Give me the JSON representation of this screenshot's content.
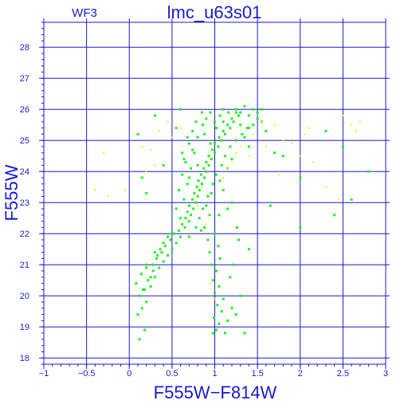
{
  "header": {
    "chip_label": "WF3"
  },
  "chart_data": {
    "type": "scatter",
    "title": "lmc_u63s01",
    "xlabel": "F555W−F814W",
    "ylabel": "F555W",
    "xlim": [
      -1,
      3
    ],
    "ylim": [
      28.8,
      17.8
    ],
    "y_inverted": true,
    "grid": true,
    "x_ticks": [
      -1,
      -0.5,
      0,
      0.5,
      1,
      1.5,
      2,
      2.5,
      3
    ],
    "x_tick_labels": [
      "−1",
      "−0.5",
      "0",
      "0.5",
      "1",
      "1.5",
      "2",
      "2.5",
      "3"
    ],
    "y_ticks": [
      18,
      19,
      20,
      21,
      22,
      23,
      24,
      25,
      26,
      27,
      28
    ],
    "y_tick_labels": [
      "18",
      "19",
      "20",
      "21",
      "22",
      "23",
      "24",
      "25",
      "26",
      "27",
      "28"
    ],
    "colors": {
      "frame": "#1a1acd",
      "grid": "#1a1acd",
      "primary_points": "#22ee22",
      "secondary_points": "#eeee00"
    },
    "series": [
      {
        "color": "#22ee22",
        "points": [
          [
            0.12,
            18.6
          ],
          [
            0.18,
            18.9
          ],
          [
            0.1,
            19.4
          ],
          [
            0.15,
            19.6
          ],
          [
            0.2,
            19.8
          ],
          [
            0.12,
            20.0
          ],
          [
            0.18,
            20.2
          ],
          [
            0.25,
            20.3
          ],
          [
            0.08,
            20.4
          ],
          [
            0.22,
            20.5
          ],
          [
            0.3,
            20.6
          ],
          [
            0.14,
            20.7
          ],
          [
            0.28,
            20.8
          ],
          [
            0.35,
            20.9
          ],
          [
            0.2,
            21.0
          ],
          [
            0.4,
            21.1
          ],
          [
            0.32,
            21.2
          ],
          [
            0.45,
            21.3
          ],
          [
            0.38,
            21.4
          ],
          [
            0.5,
            21.5
          ],
          [
            0.42,
            21.6
          ],
          [
            0.55,
            21.7
          ],
          [
            0.48,
            21.8
          ],
          [
            0.6,
            21.9
          ],
          [
            0.52,
            22.0
          ],
          [
            0.58,
            22.1
          ],
          [
            0.65,
            22.2
          ],
          [
            0.62,
            22.3
          ],
          [
            0.7,
            22.4
          ],
          [
            0.66,
            22.5
          ],
          [
            0.72,
            22.6
          ],
          [
            0.68,
            22.7
          ],
          [
            0.75,
            22.8
          ],
          [
            0.7,
            22.9
          ],
          [
            0.78,
            23.0
          ],
          [
            0.74,
            23.1
          ],
          [
            0.8,
            23.2
          ],
          [
            0.76,
            23.3
          ],
          [
            0.82,
            23.4
          ],
          [
            0.79,
            23.5
          ],
          [
            0.85,
            23.6
          ],
          [
            0.81,
            23.7
          ],
          [
            0.88,
            23.8
          ],
          [
            0.84,
            23.9
          ],
          [
            0.9,
            24.0
          ],
          [
            0.87,
            24.1
          ],
          [
            0.93,
            24.2
          ],
          [
            0.9,
            24.3
          ],
          [
            0.96,
            24.4
          ],
          [
            0.93,
            24.5
          ],
          [
            1.0,
            24.6
          ],
          [
            0.97,
            24.7
          ],
          [
            1.04,
            24.8
          ],
          [
            1.0,
            24.9
          ],
          [
            1.08,
            25.0
          ],
          [
            1.05,
            25.1
          ],
          [
            1.12,
            25.2
          ],
          [
            1.1,
            25.3
          ],
          [
            1.18,
            25.4
          ],
          [
            1.15,
            25.5
          ],
          [
            1.22,
            25.6
          ],
          [
            1.2,
            25.7
          ],
          [
            1.28,
            25.8
          ],
          [
            1.3,
            25.9
          ],
          [
            1.4,
            25.8
          ],
          [
            1.5,
            25.9
          ],
          [
            1.55,
            26.0
          ],
          [
            1.45,
            26.0
          ],
          [
            1.35,
            26.1
          ],
          [
            1.1,
            26.0
          ],
          [
            0.6,
            22.5
          ],
          [
            0.55,
            22.8
          ],
          [
            0.64,
            23.1
          ],
          [
            0.58,
            23.4
          ],
          [
            0.68,
            23.6
          ],
          [
            0.62,
            23.9
          ],
          [
            0.72,
            24.1
          ],
          [
            0.66,
            24.3
          ],
          [
            0.76,
            24.6
          ],
          [
            0.7,
            24.9
          ],
          [
            0.8,
            25.1
          ],
          [
            0.74,
            25.3
          ],
          [
            0.86,
            25.5
          ],
          [
            0.9,
            25.7
          ],
          [
            0.95,
            25.9
          ],
          [
            1.0,
            25.6
          ],
          [
            1.06,
            25.8
          ],
          [
            1.16,
            25.9
          ],
          [
            1.25,
            26.0
          ],
          [
            1.02,
            25.4
          ],
          [
            0.82,
            22.5
          ],
          [
            0.86,
            22.8
          ],
          [
            0.92,
            23.2
          ],
          [
            0.98,
            23.6
          ],
          [
            1.02,
            23.9
          ],
          [
            1.08,
            24.2
          ],
          [
            1.12,
            24.5
          ],
          [
            1.18,
            24.8
          ],
          [
            1.25,
            25.0
          ],
          [
            1.32,
            25.2
          ],
          [
            1.38,
            25.4
          ],
          [
            1.45,
            25.5
          ],
          [
            1.2,
            24.4
          ],
          [
            1.15,
            24.1
          ],
          [
            1.06,
            23.7
          ],
          [
            0.96,
            23.3
          ],
          [
            0.9,
            22.9
          ],
          [
            0.78,
            22.2
          ],
          [
            0.84,
            22.1
          ],
          [
            0.7,
            21.9
          ],
          [
            0.98,
            18.8
          ],
          [
            1.02,
            18.9
          ],
          [
            1.05,
            19.1
          ],
          [
            0.99,
            19.3
          ],
          [
            1.08,
            19.5
          ],
          [
            1.03,
            19.7
          ],
          [
            1.1,
            19.9
          ],
          [
            1.0,
            20.1
          ],
          [
            1.05,
            20.3
          ],
          [
            0.98,
            20.5
          ],
          [
            1.02,
            20.8
          ],
          [
            0.96,
            21.0
          ],
          [
            1.06,
            21.2
          ],
          [
            0.94,
            21.4
          ],
          [
            1.04,
            21.6
          ],
          [
            0.92,
            21.8
          ],
          [
            1.0,
            22.0
          ],
          [
            1.12,
            18.8
          ],
          [
            1.15,
            19.2
          ],
          [
            1.2,
            19.6
          ],
          [
            1.25,
            19.4
          ],
          [
            1.3,
            20.0
          ],
          [
            1.35,
            18.8
          ],
          [
            1.4,
            21.5
          ],
          [
            1.18,
            20.6
          ],
          [
            1.22,
            21.0
          ],
          [
            1.28,
            21.8
          ],
          [
            0.88,
            22.2
          ],
          [
            0.94,
            22.6
          ],
          [
            1.26,
            22.2
          ],
          [
            0.95,
            24.9
          ],
          [
            0.88,
            25.2
          ],
          [
            1.1,
            25.6
          ],
          [
            1.3,
            25.5
          ],
          [
            1.5,
            25.7
          ],
          [
            1.4,
            25.4
          ],
          [
            0.7,
            23.8
          ],
          [
            0.64,
            24.4
          ],
          [
            0.74,
            24.7
          ],
          [
            0.8,
            24.2
          ],
          [
            1.1,
            23.4
          ],
          [
            1.15,
            22.8
          ],
          [
            1.2,
            23.0
          ],
          [
            1.05,
            22.6
          ],
          [
            0.5,
            22.0
          ],
          [
            0.45,
            21.9
          ],
          [
            0.4,
            21.7
          ],
          [
            0.36,
            21.5
          ],
          [
            0.33,
            21.3
          ],
          [
            0.28,
            21.0
          ],
          [
            0.25,
            20.6
          ],
          [
            0.2,
            20.9
          ],
          [
            0.16,
            20.2
          ],
          [
            0.3,
            21.4
          ],
          [
            1.65,
            22.9
          ],
          [
            2.0,
            22.2
          ],
          [
            2.4,
            22.6
          ],
          [
            2.6,
            23.1
          ],
          [
            2.8,
            24.0
          ],
          [
            2.5,
            24.8
          ],
          [
            2.3,
            25.3
          ],
          [
            2.0,
            23.8
          ],
          [
            1.8,
            24.5
          ],
          [
            0.15,
            23.8
          ],
          [
            0.4,
            24.2
          ],
          [
            0.1,
            25.2
          ],
          [
            0.3,
            25.8
          ],
          [
            0.2,
            23.3
          ],
          [
            0.6,
            26.0
          ],
          [
            0.55,
            25.4
          ],
          [
            1.6,
            25.3
          ],
          [
            1.7,
            24.6
          ],
          [
            1.4,
            24.8
          ],
          [
            1.55,
            25.6
          ],
          [
            1.25,
            25.9
          ],
          [
            1.35,
            25.1
          ],
          [
            0.85,
            25.9
          ],
          [
            0.78,
            25.6
          ],
          [
            0.68,
            25.1
          ],
          [
            0.62,
            24.6
          ]
        ]
      },
      {
        "color": "#eeee00",
        "points": [
          [
            -0.4,
            23.4
          ],
          [
            -0.3,
            24.6
          ],
          [
            -0.25,
            23.2
          ],
          [
            -0.05,
            23.4
          ],
          [
            0.2,
            24.0
          ],
          [
            0.25,
            24.7
          ],
          [
            0.3,
            24.2
          ],
          [
            0.35,
            25.3
          ],
          [
            0.45,
            25.6
          ],
          [
            0.5,
            25.1
          ],
          [
            0.15,
            24.8
          ],
          [
            0.8,
            22.9
          ],
          [
            0.85,
            23.5
          ],
          [
            1.1,
            23.8
          ],
          [
            1.2,
            24.3
          ],
          [
            1.3,
            24.8
          ],
          [
            1.4,
            24.5
          ],
          [
            1.45,
            25.2
          ],
          [
            1.55,
            25.6
          ],
          [
            1.6,
            24.8
          ],
          [
            1.7,
            25.5
          ],
          [
            1.8,
            25.0
          ],
          [
            1.9,
            24.9
          ],
          [
            2.0,
            24.5
          ],
          [
            2.05,
            25.2
          ],
          [
            2.1,
            25.4
          ],
          [
            2.15,
            24.3
          ],
          [
            2.3,
            23.5
          ],
          [
            2.45,
            23.1
          ],
          [
            2.5,
            25.8
          ],
          [
            2.6,
            25.5
          ],
          [
            2.65,
            25.3
          ],
          [
            2.7,
            25.6
          ],
          [
            1.75,
            23.9
          ],
          [
            0.9,
            22.3
          ],
          [
            0.95,
            20.4
          ],
          [
            1.0,
            19.9
          ],
          [
            1.15,
            24.1
          ],
          [
            1.25,
            24.6
          ],
          [
            0.6,
            25.4
          ]
        ]
      }
    ]
  }
}
